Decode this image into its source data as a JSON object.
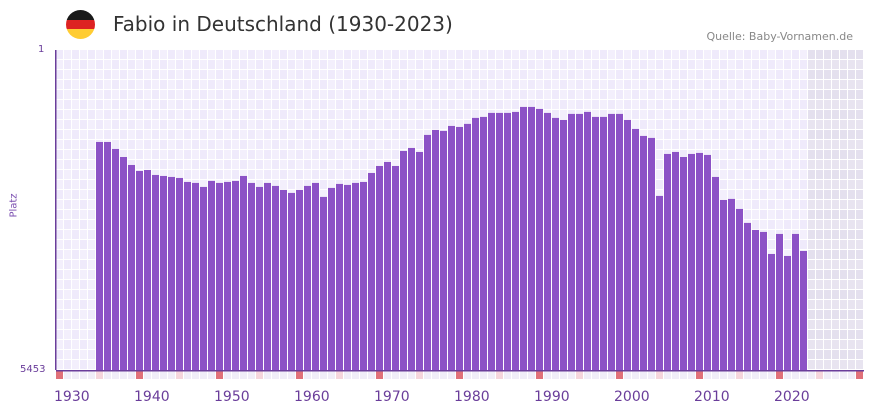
{
  "header": {
    "title": "Fabio in Deutschland (1930-2023)",
    "source": "Quelle: Baby-Vornamen.de",
    "flag_colors": [
      "#1a1a1a",
      "#dd2222",
      "#ffcc33"
    ]
  },
  "colors": {
    "bar": "#8c52c6",
    "grid_bg": "#efeafb",
    "future_bg": "#e4e0ee",
    "decade_marker": "#e07079",
    "mid_marker": "#f5d5dc",
    "axis": "#6a3d9a"
  },
  "chart_data": {
    "type": "bar",
    "title": "Fabio in Deutschland (1930-2023)",
    "xlabel": "",
    "ylabel": "Platz",
    "ylim": [
      5453,
      1
    ],
    "y_ticks": [
      "1",
      "5453"
    ],
    "x_ticks": [
      "1930",
      "1940",
      "1950",
      "1960",
      "1970",
      "1980",
      "1990",
      "2000",
      "2010",
      "2020"
    ],
    "x_range": [
      1930,
      2030
    ],
    "categories": [
      1935,
      1936,
      1937,
      1938,
      1939,
      1940,
      1941,
      1942,
      1943,
      1944,
      1945,
      1946,
      1947,
      1948,
      1949,
      1950,
      1951,
      1952,
      1953,
      1954,
      1955,
      1956,
      1957,
      1958,
      1959,
      1960,
      1961,
      1962,
      1963,
      1964,
      1965,
      1966,
      1967,
      1968,
      1969,
      1970,
      1971,
      1972,
      1973,
      1974,
      1975,
      1976,
      1977,
      1978,
      1979,
      1980,
      1981,
      1982,
      1983,
      1984,
      1985,
      1986,
      1987,
      1988,
      1989,
      1990,
      1991,
      1992,
      1993,
      1994,
      1995,
      1996,
      1997,
      1998,
      1999,
      2000,
      2001,
      2002,
      2003,
      2004,
      2005,
      2006,
      2007,
      2008,
      2009,
      2010,
      2011,
      2012,
      2013,
      2014,
      2015,
      2016,
      2017,
      2018,
      2019,
      2020,
      2021,
      2022,
      2023
    ],
    "values": [
      1568,
      1568,
      1687,
      1824,
      1960,
      2062,
      2045,
      2130,
      2147,
      2164,
      2181,
      2249,
      2266,
      2334,
      2232,
      2266,
      2249,
      2232,
      2147,
      2266,
      2334,
      2266,
      2317,
      2385,
      2436,
      2385,
      2317,
      2266,
      2504,
      2351,
      2283,
      2300,
      2266,
      2249,
      2096,
      1977,
      1909,
      1977,
      1721,
      1670,
      1738,
      1448,
      1363,
      1380,
      1295,
      1312,
      1260,
      1158,
      1141,
      1073,
      1073,
      1073,
      1056,
      971,
      971,
      1005,
      1073,
      1158,
      1192,
      1090,
      1090,
      1056,
      1141,
      1141,
      1090,
      1090,
      1192,
      1346,
      1465,
      1499,
      2487,
      1772,
      1738,
      1824,
      1772,
      1755,
      1789,
      2164,
      2555,
      2538,
      2709,
      2947,
      3067,
      3101,
      3476,
      3135,
      3510,
      3135,
      3425
    ]
  }
}
